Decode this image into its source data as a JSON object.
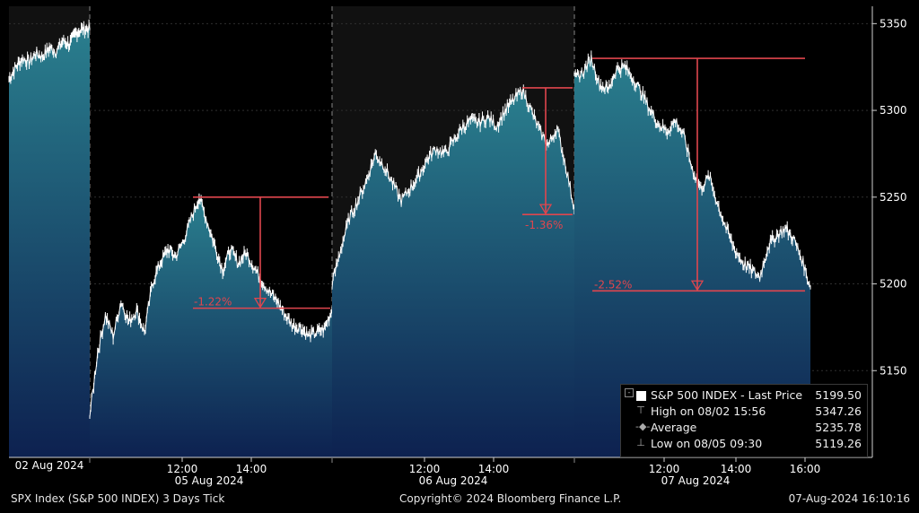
{
  "chart_data": {
    "type": "area",
    "ylim": [
      5100,
      5360
    ],
    "y_ticks": [
      5150,
      5200,
      5250,
      5300,
      5350
    ],
    "grid": true,
    "days": [
      {
        "label": "02 Aug 2024",
        "time_ticks": []
      },
      {
        "label": "05 Aug 2024",
        "time_ticks": [
          "12:00",
          "14:00"
        ]
      },
      {
        "label": "06 Aug 2024",
        "time_ticks": [
          "12:00",
          "14:00"
        ]
      },
      {
        "label": "07 Aug 2024",
        "time_ticks": [
          "12:00",
          "14:00",
          "16:00"
        ]
      }
    ],
    "series": [
      {
        "values": [
          [
            5318,
            5325,
            5330,
            5328,
            5333,
            5331,
            5336,
            5334,
            5340,
            5338,
            5345,
            5347,
            5347
          ],
          [
            5124,
            5160,
            5182,
            5170,
            5190,
            5178,
            5185,
            5172,
            5200,
            5212,
            5220,
            5216,
            5225,
            5238,
            5250,
            5236,
            5222,
            5208,
            5220,
            5212,
            5218,
            5210,
            5202,
            5195,
            5190,
            5182,
            5176,
            5175,
            5170,
            5172,
            5174,
            5185
          ],
          [
            5200,
            5220,
            5238,
            5248,
            5260,
            5275,
            5268,
            5258,
            5248,
            5255,
            5262,
            5272,
            5278,
            5275,
            5282,
            5290,
            5294,
            5293,
            5296,
            5291,
            5300,
            5306,
            5312,
            5300,
            5288,
            5280,
            5290,
            5268,
            5243
          ],
          [
            5318,
            5322,
            5330,
            5315,
            5312,
            5324,
            5325,
            5318,
            5310,
            5300,
            5292,
            5288,
            5294,
            5285,
            5266,
            5255,
            5262,
            5246,
            5232,
            5220,
            5212,
            5208,
            5204,
            5222,
            5228,
            5232,
            5226,
            5214,
            5198
          ]
        ]
      }
    ],
    "annotations": [
      {
        "label": "-1.22%",
        "high": 5250,
        "low": 5186
      },
      {
        "label": "-1.36%",
        "high": 5313,
        "low": 5240
      },
      {
        "label": "-2.52%",
        "high": 5330,
        "low": 5196
      }
    ],
    "legend": {
      "placement": "bottom-right",
      "rows": [
        {
          "name": "S&P 500 INDEX - Last Price",
          "value": "5199.50"
        },
        {
          "name": "High on 08/02 15:56",
          "value": "5347.26"
        },
        {
          "name": "Average",
          "value": "5235.78"
        },
        {
          "name": "Low on 08/05 09:30",
          "value": "5119.26"
        }
      ]
    }
  },
  "footer": {
    "left": "SPX Index (S&P 500 INDEX) 3 Days  Tick",
    "center": "Copyright© 2024 Bloomberg Finance L.P.",
    "right": "07-Aug-2024 16:10:16"
  },
  "colors": {
    "area_top": "#2a7f8e",
    "area_bottom": "#0d2150",
    "line": "#ffffff",
    "annotation": "#e0464e",
    "plot_bg": "#000000",
    "plot_bg_alt": "#111111"
  }
}
